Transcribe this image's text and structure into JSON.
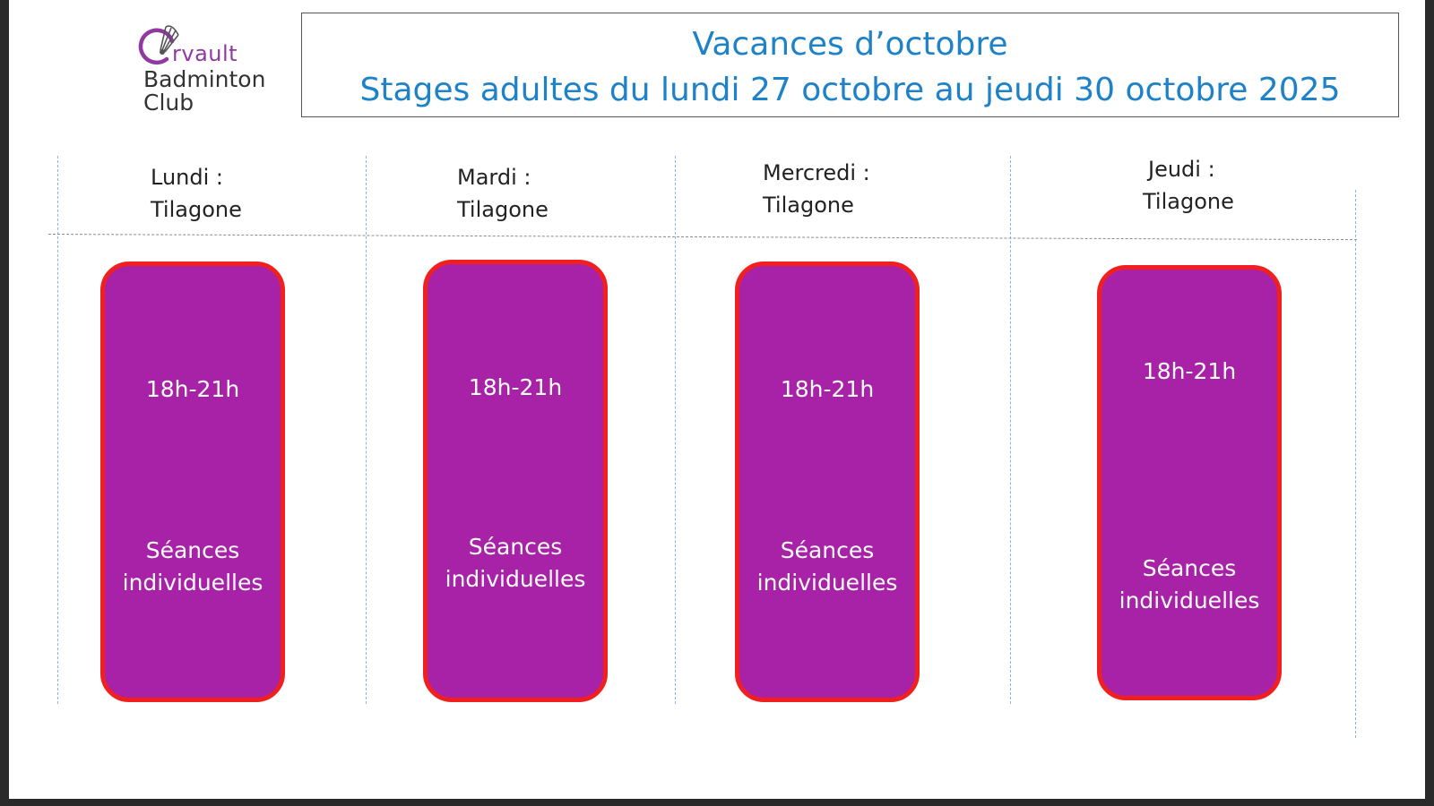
{
  "logo": {
    "line1": "rvault",
    "line2": "Badminton",
    "line3": "Club",
    "icon": "shuttlecock-icon",
    "brand_color": "#8e3aa0"
  },
  "title": {
    "line1": "Vacances d’octobre",
    "line2": "Stages adultes du lundi 27 octobre au jeudi 30 octobre 2025",
    "color": "#1e82c8"
  },
  "days": [
    {
      "day": "Lundi :",
      "place": "Tilagone",
      "time": "18h-21h",
      "line1": "Séances",
      "line2": "individuelles"
    },
    {
      "day": "Mardi :",
      "place": "Tilagone",
      "time": "18h-21h",
      "line1": "Séances",
      "line2": "individuelles"
    },
    {
      "day": "Mercredi :",
      "place": "Tilagone",
      "time": "18h-21h",
      "line1": "Séances",
      "line2": "individuelles"
    },
    {
      "day": "Jeudi :",
      "place": "Tilagone",
      "time": "18h-21h",
      "line1": "Séances",
      "line2": "individuelles"
    }
  ],
  "colors": {
    "session_fill": "#a822a8",
    "session_border": "#f21f1f"
  }
}
